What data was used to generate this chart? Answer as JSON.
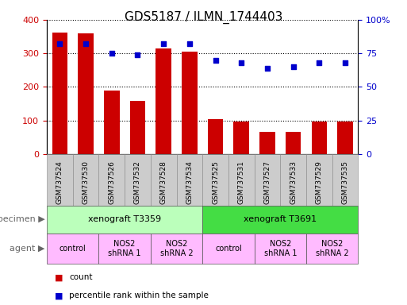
{
  "title": "GDS5187 / ILMN_1744403",
  "samples": [
    "GSM737524",
    "GSM737530",
    "GSM737526",
    "GSM737532",
    "GSM737528",
    "GSM737534",
    "GSM737525",
    "GSM737531",
    "GSM737527",
    "GSM737533",
    "GSM737529",
    "GSM737535"
  ],
  "counts": [
    362,
    360,
    190,
    158,
    315,
    305,
    104,
    97,
    65,
    65,
    98,
    96
  ],
  "percentile_ranks": [
    82,
    82,
    75,
    74,
    82,
    82,
    70,
    68,
    64,
    65,
    68,
    68
  ],
  "ylim_left": [
    0,
    400
  ],
  "ylim_right": [
    0,
    100
  ],
  "yticks_left": [
    0,
    100,
    200,
    300,
    400
  ],
  "yticks_right": [
    0,
    25,
    50,
    75,
    100
  ],
  "ytick_right_labels": [
    "0",
    "25",
    "50",
    "75",
    "100%"
  ],
  "bar_color": "#cc0000",
  "dot_color": "#0000cc",
  "specimen_row": [
    {
      "label": "xenograft T3359",
      "start": 0,
      "end": 6,
      "color": "#bbffbb"
    },
    {
      "label": "xenograft T3691",
      "start": 6,
      "end": 12,
      "color": "#44dd44"
    }
  ],
  "agent_row": [
    {
      "label": "control",
      "start": 0,
      "end": 2,
      "color": "#ffbbff"
    },
    {
      "label": "NOS2\nshRNA 1",
      "start": 2,
      "end": 4,
      "color": "#ffbbff"
    },
    {
      "label": "NOS2\nshRNA 2",
      "start": 4,
      "end": 6,
      "color": "#ffbbff"
    },
    {
      "label": "control",
      "start": 6,
      "end": 8,
      "color": "#ffbbff"
    },
    {
      "label": "NOS2\nshRNA 1",
      "start": 8,
      "end": 10,
      "color": "#ffbbff"
    },
    {
      "label": "NOS2\nshRNA 2",
      "start": 10,
      "end": 12,
      "color": "#ffbbff"
    }
  ],
  "specimen_label": "specimen",
  "agent_label": "agent",
  "legend_count_label": "count",
  "legend_percentile_label": "percentile rank within the sample",
  "bar_color_left": "#cc0000",
  "tick_label_color_right": "#0000cc",
  "background_color": "#ffffff",
  "xlim": [
    -0.5,
    11.5
  ],
  "bar_width": 0.6,
  "xticklabel_bg": "#cccccc"
}
